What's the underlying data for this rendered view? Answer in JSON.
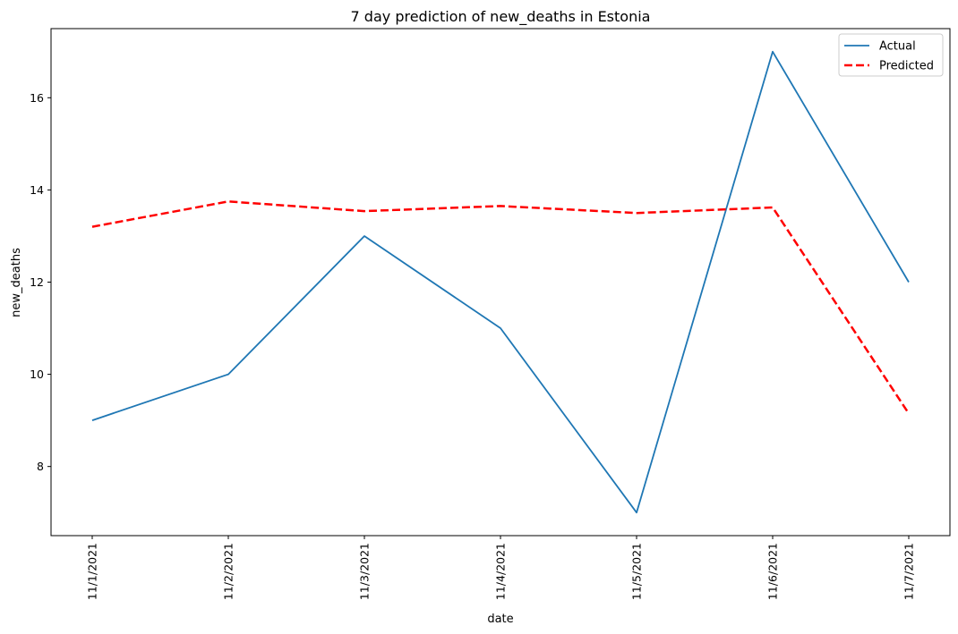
{
  "chart_data": {
    "type": "line",
    "title": "7 day prediction of new_deaths in Estonia",
    "xlabel": "date",
    "ylabel": "new_deaths",
    "categories": [
      "11/1/2021",
      "11/2/2021",
      "11/3/2021",
      "11/4/2021",
      "11/5/2021",
      "11/6/2021",
      "11/7/2021"
    ],
    "series": [
      {
        "name": "Actual",
        "values": [
          9,
          10,
          13,
          11,
          7,
          17,
          12
        ],
        "color": "#1f77b4",
        "style": "solid"
      },
      {
        "name": "Predicted",
        "values": [
          13.2,
          13.75,
          13.54,
          13.65,
          13.5,
          13.62,
          9.15
        ],
        "color": "#ff0000",
        "style": "dashed"
      }
    ],
    "ylim": [
      6.5,
      17.5
    ],
    "yticks": [
      8,
      10,
      12,
      14,
      16
    ],
    "grid": false,
    "legend_position": "top-right"
  }
}
